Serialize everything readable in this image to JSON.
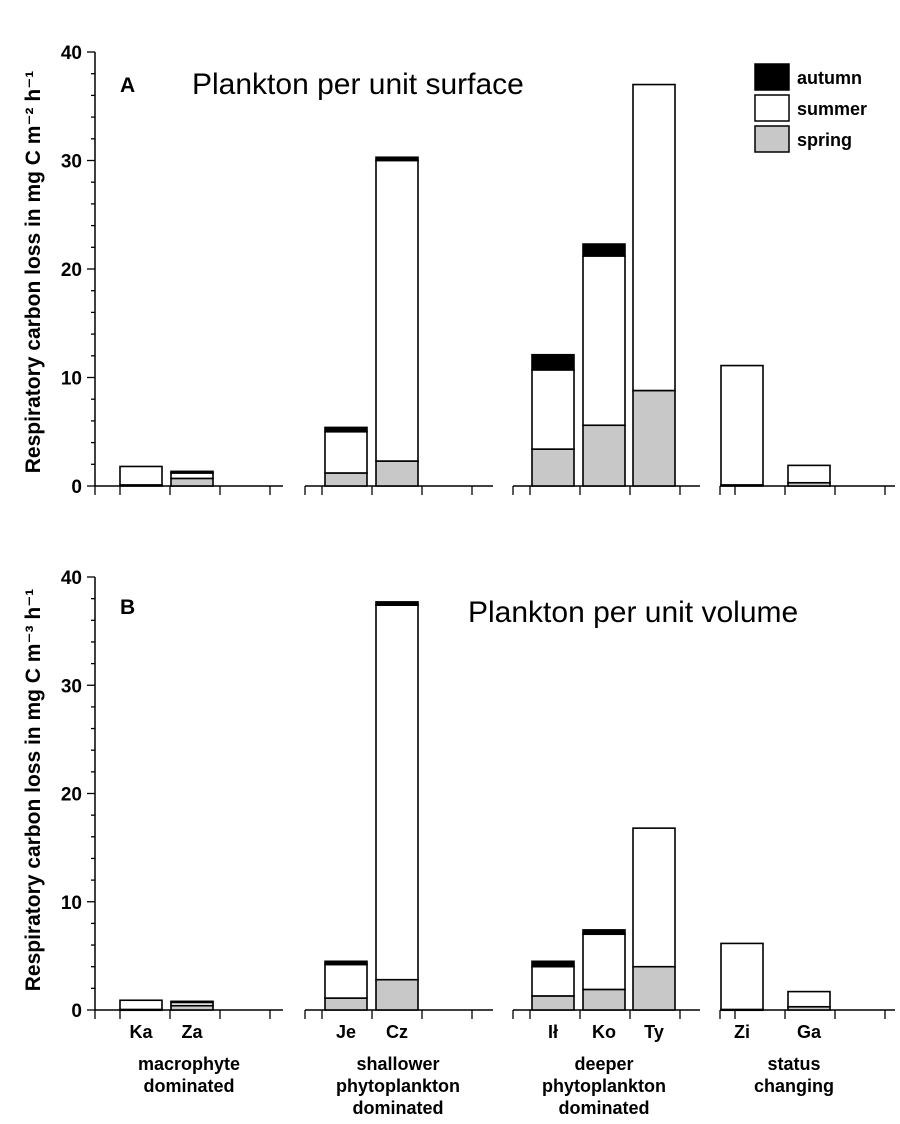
{
  "chart_data": [
    {
      "type": "bar",
      "stacked": true,
      "panel_letter": "A",
      "title": "Plankton per unit surface",
      "ylabel": "Respiratory carbon loss in mg C m⁻² h⁻¹",
      "ylim": [
        0,
        40
      ],
      "yticks": [
        "0",
        "10",
        "20",
        "30",
        "40"
      ],
      "categories": [
        "Ka",
        "Za",
        "Je",
        "Cz",
        "Ił",
        "Ko",
        "Ty",
        "Zi",
        "Ga"
      ],
      "series": [
        {
          "name": "spring",
          "color": "#c8c8c8",
          "values": [
            0.1,
            0.7,
            1.2,
            2.3,
            3.4,
            5.6,
            8.8,
            0.1,
            0.3
          ]
        },
        {
          "name": "summer",
          "color": "#ffffff",
          "values": [
            1.7,
            0.5,
            3.8,
            27.7,
            7.3,
            15.6,
            28.2,
            11.0,
            1.6
          ]
        },
        {
          "name": "autumn",
          "color": "#000000",
          "values": [
            0.0,
            0.15,
            0.4,
            0.3,
            1.4,
            1.1,
            0.0,
            0.0,
            0.0
          ]
        }
      ],
      "legend": {
        "position": "top-right",
        "entries": [
          "autumn",
          "summer",
          "spring"
        ]
      }
    },
    {
      "type": "bar",
      "stacked": true,
      "panel_letter": "B",
      "title": "Plankton per unit volume",
      "ylabel": "Respiratory carbon loss in mg C m⁻³ h⁻¹",
      "ylim": [
        0,
        40
      ],
      "yticks": [
        "0",
        "10",
        "20",
        "30",
        "40"
      ],
      "categories": [
        "Ka",
        "Za",
        "Je",
        "Cz",
        "Ił",
        "Ko",
        "Ty",
        "Zi",
        "Ga"
      ],
      "series": [
        {
          "name": "spring",
          "color": "#c8c8c8",
          "values": [
            0.05,
            0.4,
            1.1,
            2.8,
            1.3,
            1.9,
            4.0,
            0.05,
            0.3
          ]
        },
        {
          "name": "summer",
          "color": "#ffffff",
          "values": [
            0.85,
            0.3,
            3.1,
            34.6,
            2.7,
            5.1,
            12.8,
            6.1,
            1.4
          ]
        },
        {
          "name": "autumn",
          "color": "#000000",
          "values": [
            0.0,
            0.1,
            0.3,
            0.3,
            0.5,
            0.4,
            0.0,
            0.0,
            0.0
          ]
        }
      ]
    }
  ],
  "groups": [
    {
      "label_lines": [
        "macrophyte",
        "dominated"
      ]
    },
    {
      "label_lines": [
        "shallower",
        "phytoplankton",
        "dominated"
      ]
    },
    {
      "label_lines": [
        "deeper",
        "phytoplankton",
        "dominated"
      ]
    },
    {
      "label_lines": [
        "status",
        "changing"
      ]
    }
  ]
}
